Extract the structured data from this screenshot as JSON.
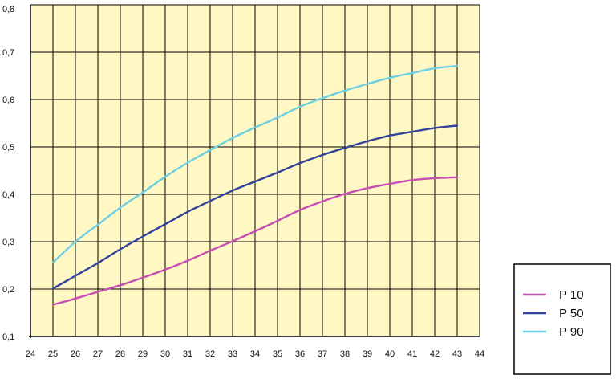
{
  "chart_data": {
    "type": "line",
    "x": [
      25,
      26,
      27,
      28,
      29,
      30,
      31,
      32,
      33,
      34,
      35,
      36,
      37,
      38,
      39,
      40,
      41,
      42,
      43
    ],
    "xlim": [
      24,
      44
    ],
    "ylim": [
      0.1,
      0.8
    ],
    "x_ticks": [
      "24",
      "25",
      "26",
      "27",
      "28",
      "29",
      "30",
      "31",
      "32",
      "33",
      "34",
      "35",
      "36",
      "37",
      "38",
      "39",
      "40",
      "41",
      "42",
      "43",
      "44"
    ],
    "y_ticks": [
      "0,1",
      "0,2",
      "0,3",
      "0,4",
      "0,5",
      "0,6",
      "0,7",
      "0,8"
    ],
    "grid": true,
    "legend_position": "bottom-right",
    "plot_background": "#FFF7C4",
    "series": [
      {
        "name": "P 10",
        "color": "#C64FB3",
        "values": [
          0.167,
          0.18,
          0.194,
          0.208,
          0.224,
          0.241,
          0.26,
          0.281,
          0.301,
          0.322,
          0.344,
          0.367,
          0.385,
          0.401,
          0.413,
          0.422,
          0.43,
          0.434,
          0.436
        ]
      },
      {
        "name": "P 50",
        "color": "#33429A",
        "values": [
          0.201,
          0.228,
          0.255,
          0.284,
          0.311,
          0.337,
          0.363,
          0.386,
          0.408,
          0.427,
          0.446,
          0.466,
          0.483,
          0.498,
          0.512,
          0.524,
          0.532,
          0.54,
          0.545
        ]
      },
      {
        "name": "P 90",
        "color": "#6CCFE2",
        "values": [
          0.256,
          0.3,
          0.336,
          0.372,
          0.404,
          0.437,
          0.467,
          0.493,
          0.519,
          0.541,
          0.562,
          0.585,
          0.603,
          0.619,
          0.633,
          0.646,
          0.656,
          0.666,
          0.671
        ]
      }
    ]
  }
}
